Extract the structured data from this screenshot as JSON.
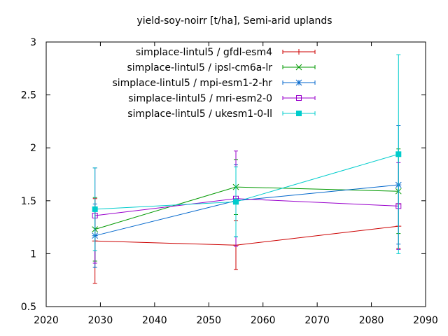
{
  "chart_data": {
    "type": "line",
    "title": "yield-soy-noirr [t/ha], Semi-arid uplands",
    "xlabel": "",
    "ylabel": "",
    "xlim": [
      2020,
      2090
    ],
    "ylim": [
      0.5,
      3
    ],
    "xticks": [
      2020,
      2030,
      2040,
      2050,
      2060,
      2070,
      2080,
      2090
    ],
    "yticks": [
      0.5,
      1,
      1.5,
      2,
      2.5,
      3
    ],
    "ytick_labels": [
      "0.5",
      "1",
      "1.5",
      "2",
      "2.5",
      "3"
    ],
    "grid": false,
    "legend_position": "top-right",
    "series": [
      {
        "name": "simplace-lintul5 / gfdl-esm4",
        "color": "#cc0000",
        "marker": "plus",
        "x": [
          2029,
          2055,
          2085
        ],
        "y": [
          1.12,
          1.08,
          1.26
        ],
        "err_low": [
          0.72,
          0.85,
          1.05
        ],
        "err_high": [
          1.52,
          1.31,
          1.47
        ]
      },
      {
        "name": "simplace-lintul5 / ipsl-cm6a-lr",
        "color": "#009900",
        "marker": "cross",
        "x": [
          2029,
          2055,
          2085
        ],
        "y": [
          1.23,
          1.63,
          1.59
        ],
        "err_low": [
          0.93,
          1.37,
          1.19
        ],
        "err_high": [
          1.53,
          1.89,
          1.99
        ]
      },
      {
        "name": "simplace-lintul5 / mpi-esm1-2-hr",
        "color": "#0066cc",
        "marker": "star",
        "x": [
          2029,
          2055,
          2085
        ],
        "y": [
          1.17,
          1.5,
          1.65
        ],
        "err_low": [
          0.87,
          1.16,
          1.09
        ],
        "err_high": [
          1.47,
          1.84,
          2.21
        ]
      },
      {
        "name": "simplace-lintul5 / mri-esm2-0",
        "color": "#9900cc",
        "marker": "square-open",
        "x": [
          2029,
          2055,
          2085
        ],
        "y": [
          1.36,
          1.52,
          1.45
        ],
        "err_low": [
          0.91,
          1.07,
          1.04
        ],
        "err_high": [
          1.81,
          1.97,
          1.86
        ]
      },
      {
        "name": "simplace-lintul5 / ukesm1-0-ll",
        "color": "#00cccc",
        "marker": "square-filled",
        "x": [
          2029,
          2055,
          2085
        ],
        "y": [
          1.42,
          1.49,
          1.94
        ],
        "err_low": [
          1.03,
          1.16,
          1.0
        ],
        "err_high": [
          1.81,
          1.82,
          2.88
        ]
      }
    ]
  }
}
